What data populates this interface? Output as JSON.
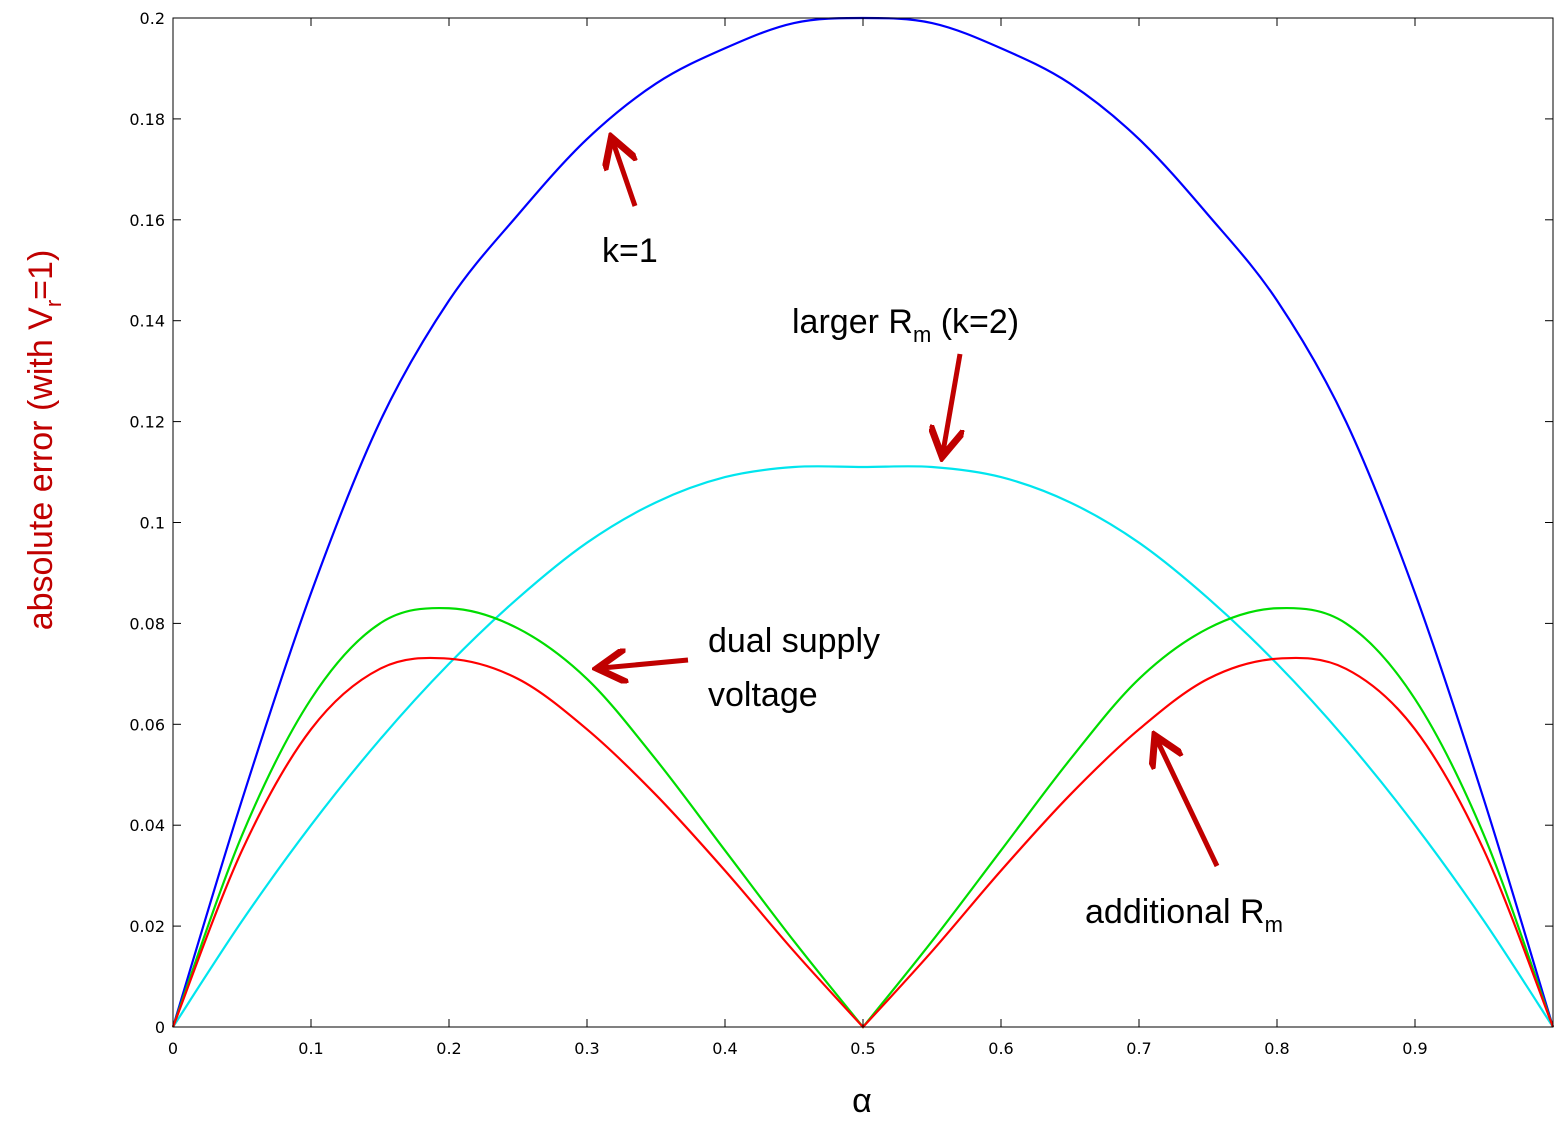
{
  "chart_data": {
    "type": "line",
    "xlabel": "α",
    "ylabel": {
      "main": "absolute error (with V",
      "sub": "r",
      "tail": "=1)"
    },
    "ylabel_color": "#c00000",
    "xlim": [
      0,
      1
    ],
    "ylim": [
      0,
      0.2
    ],
    "grid": false,
    "x_ticks": [
      0,
      0.1,
      0.2,
      0.3,
      0.4,
      0.5,
      0.6,
      0.7,
      0.8,
      0.9
    ],
    "x_tick_labels": [
      "0",
      "0.1",
      "0.2",
      "0.3",
      "0.4",
      "0.5",
      "0.6",
      "0.7",
      "0.8",
      "0.9"
    ],
    "y_ticks": [
      0,
      0.02,
      0.04,
      0.06,
      0.08,
      0.1,
      0.12,
      0.14,
      0.16,
      0.18,
      0.2
    ],
    "y_tick_labels": [
      "0",
      "0.02",
      "0.04",
      "0.06",
      "0.08",
      "0.1",
      "0.12",
      "0.14",
      "0.16",
      "0.18",
      "0.2"
    ],
    "series": [
      {
        "color": "#0000ff",
        "x": [
          0,
          0.05,
          0.1,
          0.15,
          0.2,
          0.25,
          0.3,
          0.35,
          0.4,
          0.45,
          0.5,
          0.55,
          0.6,
          0.65,
          0.7,
          0.75,
          0.8,
          0.85,
          0.9,
          0.95,
          1.0
        ],
        "y": [
          0,
          0.045,
          0.086,
          0.12,
          0.144,
          0.161,
          0.176,
          0.187,
          0.194,
          0.199,
          0.2,
          0.199,
          0.194,
          0.187,
          0.176,
          0.161,
          0.144,
          0.12,
          0.086,
          0.045,
          0
        ]
      },
      {
        "color": "#00e5ee",
        "x": [
          0,
          0.05,
          0.1,
          0.15,
          0.2,
          0.25,
          0.3,
          0.35,
          0.4,
          0.45,
          0.5,
          0.55,
          0.6,
          0.65,
          0.7,
          0.75,
          0.8,
          0.85,
          0.9,
          0.95,
          1.0
        ],
        "y": [
          0,
          0.021,
          0.04,
          0.057,
          0.072,
          0.085,
          0.096,
          0.104,
          0.109,
          0.111,
          0.111,
          0.111,
          0.109,
          0.104,
          0.096,
          0.085,
          0.072,
          0.057,
          0.04,
          0.021,
          0
        ]
      },
      {
        "color": "#00dd00",
        "x": [
          0,
          0.05,
          0.1,
          0.15,
          0.2,
          0.25,
          0.3,
          0.35,
          0.4,
          0.45,
          0.5,
          0.55,
          0.6,
          0.65,
          0.7,
          0.75,
          0.8,
          0.85,
          0.9,
          0.95,
          1.0
        ],
        "y": [
          0,
          0.038,
          0.065,
          0.08,
          0.083,
          0.079,
          0.069,
          0.053,
          0.035,
          0.017,
          0,
          0.017,
          0.035,
          0.053,
          0.069,
          0.079,
          0.083,
          0.08,
          0.065,
          0.038,
          0
        ]
      },
      {
        "color": "#ff0000",
        "x": [
          0,
          0.05,
          0.1,
          0.15,
          0.2,
          0.25,
          0.3,
          0.35,
          0.4,
          0.45,
          0.5,
          0.55,
          0.6,
          0.65,
          0.7,
          0.75,
          0.8,
          0.85,
          0.9,
          0.95,
          1.0
        ],
        "y": [
          0,
          0.035,
          0.059,
          0.071,
          0.073,
          0.069,
          0.059,
          0.046,
          0.031,
          0.015,
          0,
          0.015,
          0.031,
          0.046,
          0.059,
          0.069,
          0.073,
          0.071,
          0.059,
          0.035,
          0
        ]
      }
    ],
    "annotations": [
      {
        "id": "k1",
        "text": "k=1",
        "sub": "",
        "tail": "",
        "line2": "",
        "arrow_color": "#c00000"
      },
      {
        "id": "larger-rm",
        "text": "larger R",
        "sub": "m",
        "tail": " (k=2)",
        "line2": "",
        "arrow_color": "#c00000"
      },
      {
        "id": "dual-supply",
        "text": "dual supply",
        "sub": "",
        "tail": "",
        "line2": "voltage",
        "arrow_color": "#c00000"
      },
      {
        "id": "additional-rm",
        "text": "additional R",
        "sub": "m",
        "tail": "",
        "line2": "",
        "arrow_color": "#c00000"
      }
    ]
  }
}
